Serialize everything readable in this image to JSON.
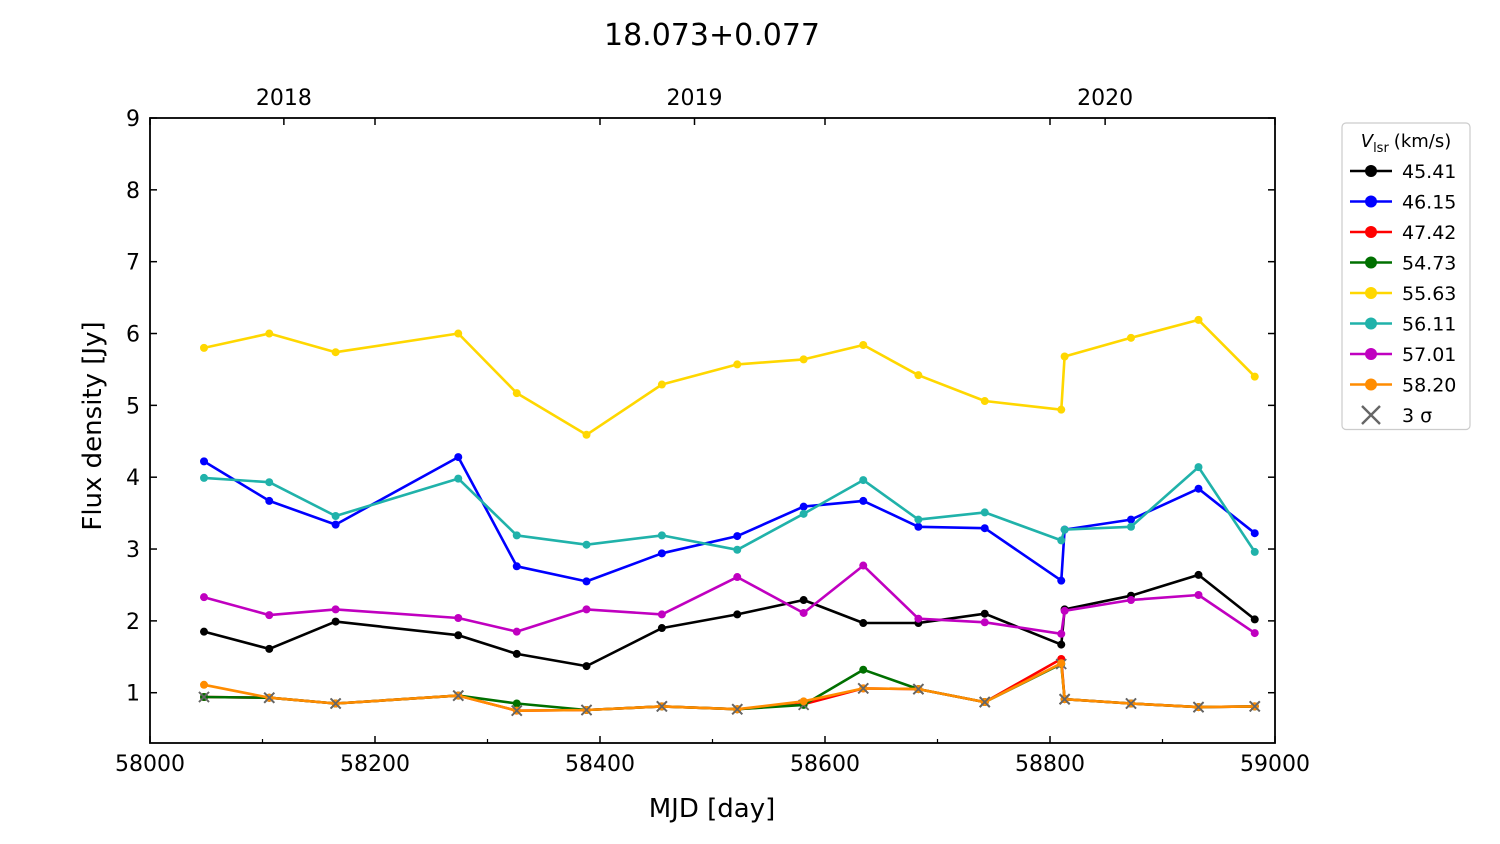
{
  "chart_data": {
    "type": "line",
    "title": "18.073+0.077",
    "xlabel": "MJD [day]",
    "ylabel": "Flux density [Jy]",
    "xlim": [
      58000,
      59000
    ],
    "ylim": [
      0.3,
      9
    ],
    "x_ticks": [
      58000,
      58200,
      58400,
      58600,
      58800,
      59000
    ],
    "y_ticks": [
      1,
      2,
      3,
      4,
      5,
      6,
      7,
      8,
      9
    ],
    "top_axis": {
      "ticks": [
        {
          "label": "2018",
          "mjd": 58119
        },
        {
          "label": "2019",
          "mjd": 58484
        },
        {
          "label": "2020",
          "mjd": 58849
        }
      ]
    },
    "legend": {
      "title_symbol": "V",
      "title_subscript": "lsr",
      "title_unit": "(km/s)",
      "placement": "right, outside plot, top",
      "sigma_label": "3 σ"
    },
    "x": [
      58048,
      58106,
      58165,
      58274,
      58326,
      58388,
      58455,
      58522,
      58581,
      58634,
      58683,
      58742,
      58810,
      58813,
      58872,
      58932,
      58982
    ],
    "series": [
      {
        "name": "45.41",
        "color": "#000000",
        "values": [
          1.85,
          1.61,
          1.99,
          1.8,
          1.54,
          1.37,
          1.9,
          2.09,
          2.29,
          1.97,
          1.97,
          2.1,
          1.67,
          2.16,
          2.35,
          2.64,
          2.02
        ],
        "upper_limits": []
      },
      {
        "name": "46.15",
        "color": "#0000ff",
        "values": [
          4.22,
          3.67,
          3.34,
          4.28,
          2.76,
          2.55,
          2.94,
          3.18,
          3.59,
          3.67,
          3.31,
          3.29,
          2.56,
          3.27,
          3.41,
          3.84,
          3.22
        ],
        "upper_limits": []
      },
      {
        "name": "47.42",
        "color": "#ff0000",
        "values": [
          0.94,
          0.93,
          0.85,
          0.96,
          0.75,
          0.76,
          0.81,
          0.77,
          0.84,
          1.06,
          1.05,
          0.87,
          1.47,
          0.91,
          0.85,
          0.8,
          0.81
        ],
        "upper_limits": [
          0,
          1,
          2,
          3,
          4,
          5,
          6,
          7,
          9,
          10,
          11,
          13,
          14,
          15,
          16
        ]
      },
      {
        "name": "54.73",
        "color": "#007000",
        "values": [
          0.94,
          0.93,
          0.85,
          0.96,
          0.85,
          0.76,
          0.81,
          0.77,
          0.83,
          1.32,
          1.05,
          0.87,
          1.4,
          0.91,
          0.85,
          0.8,
          0.81
        ],
        "upper_limits": [
          0,
          1,
          2,
          3,
          5,
          6,
          7,
          8,
          10,
          11,
          12,
          13,
          14,
          15,
          16
        ]
      },
      {
        "name": "55.63",
        "color": "#ffd700",
        "values": [
          5.8,
          6.0,
          5.74,
          6.0,
          5.17,
          4.59,
          5.29,
          5.57,
          5.64,
          5.84,
          5.42,
          5.06,
          4.94,
          5.68,
          5.94,
          6.19,
          5.4
        ],
        "upper_limits": []
      },
      {
        "name": "56.11",
        "color": "#20b2aa",
        "values": [
          3.99,
          3.93,
          3.46,
          3.98,
          3.19,
          3.06,
          3.19,
          2.99,
          3.49,
          3.96,
          3.41,
          3.51,
          3.12,
          3.27,
          3.31,
          4.14,
          2.96
        ],
        "upper_limits": []
      },
      {
        "name": "57.01",
        "color": "#c000c0",
        "values": [
          2.33,
          2.08,
          2.16,
          2.04,
          1.85,
          2.16,
          2.09,
          2.61,
          2.11,
          2.77,
          2.03,
          1.98,
          1.82,
          2.14,
          2.29,
          2.36,
          1.83
        ],
        "upper_limits": []
      },
      {
        "name": "58.20",
        "color": "#ff8c00",
        "values": [
          1.11,
          0.93,
          0.85,
          0.96,
          0.75,
          0.76,
          0.81,
          0.77,
          0.88,
          1.06,
          1.05,
          0.87,
          1.41,
          0.91,
          0.85,
          0.8,
          0.81
        ],
        "upper_limits": [
          1,
          2,
          3,
          4,
          5,
          6,
          7,
          9,
          10,
          11,
          13,
          14,
          15,
          16
        ]
      }
    ]
  }
}
